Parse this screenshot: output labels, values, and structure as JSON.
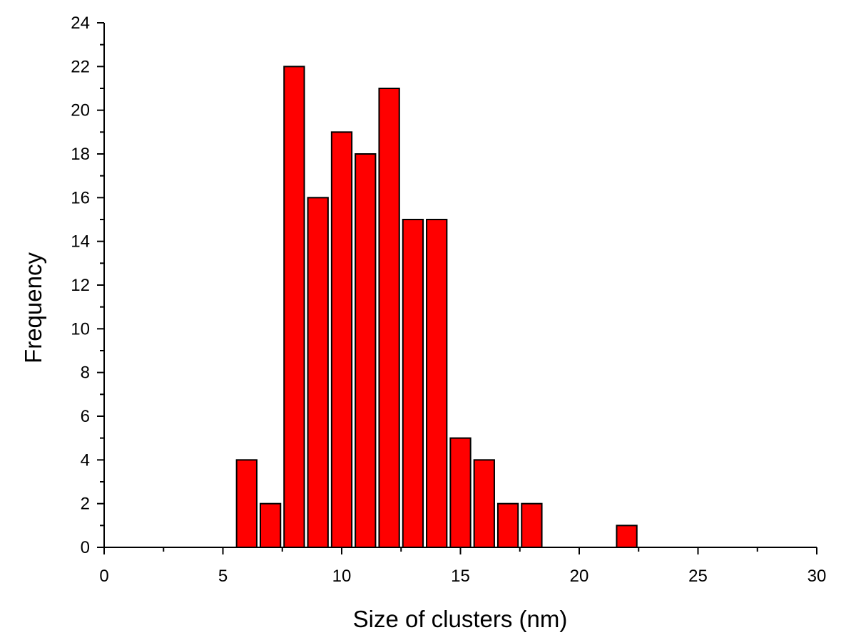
{
  "chart_data": {
    "type": "bar",
    "title": "",
    "xlabel": "Size of clusters (nm)",
    "ylabel": "Frequency",
    "xlim": [
      0,
      30
    ],
    "ylim": [
      0,
      24
    ],
    "x_ticks": [
      "0",
      "5",
      "10",
      "15",
      "20",
      "25",
      "30"
    ],
    "y_ticks": [
      "0",
      "2",
      "4",
      "6",
      "8",
      "10",
      "12",
      "14",
      "16",
      "18",
      "20",
      "22",
      "24"
    ],
    "bar_color": "#ff0000",
    "bar_edge_color": "#000000",
    "bar_width": 0.85,
    "grid": false,
    "legend": "none",
    "x": [
      6,
      7,
      8,
      9,
      10,
      11,
      12,
      13,
      14,
      15,
      16,
      17,
      18,
      19,
      20,
      21,
      22
    ],
    "values": [
      4,
      2,
      22,
      16,
      19,
      18,
      21,
      15,
      15,
      5,
      4,
      2,
      2,
      0,
      0,
      0,
      1
    ]
  }
}
